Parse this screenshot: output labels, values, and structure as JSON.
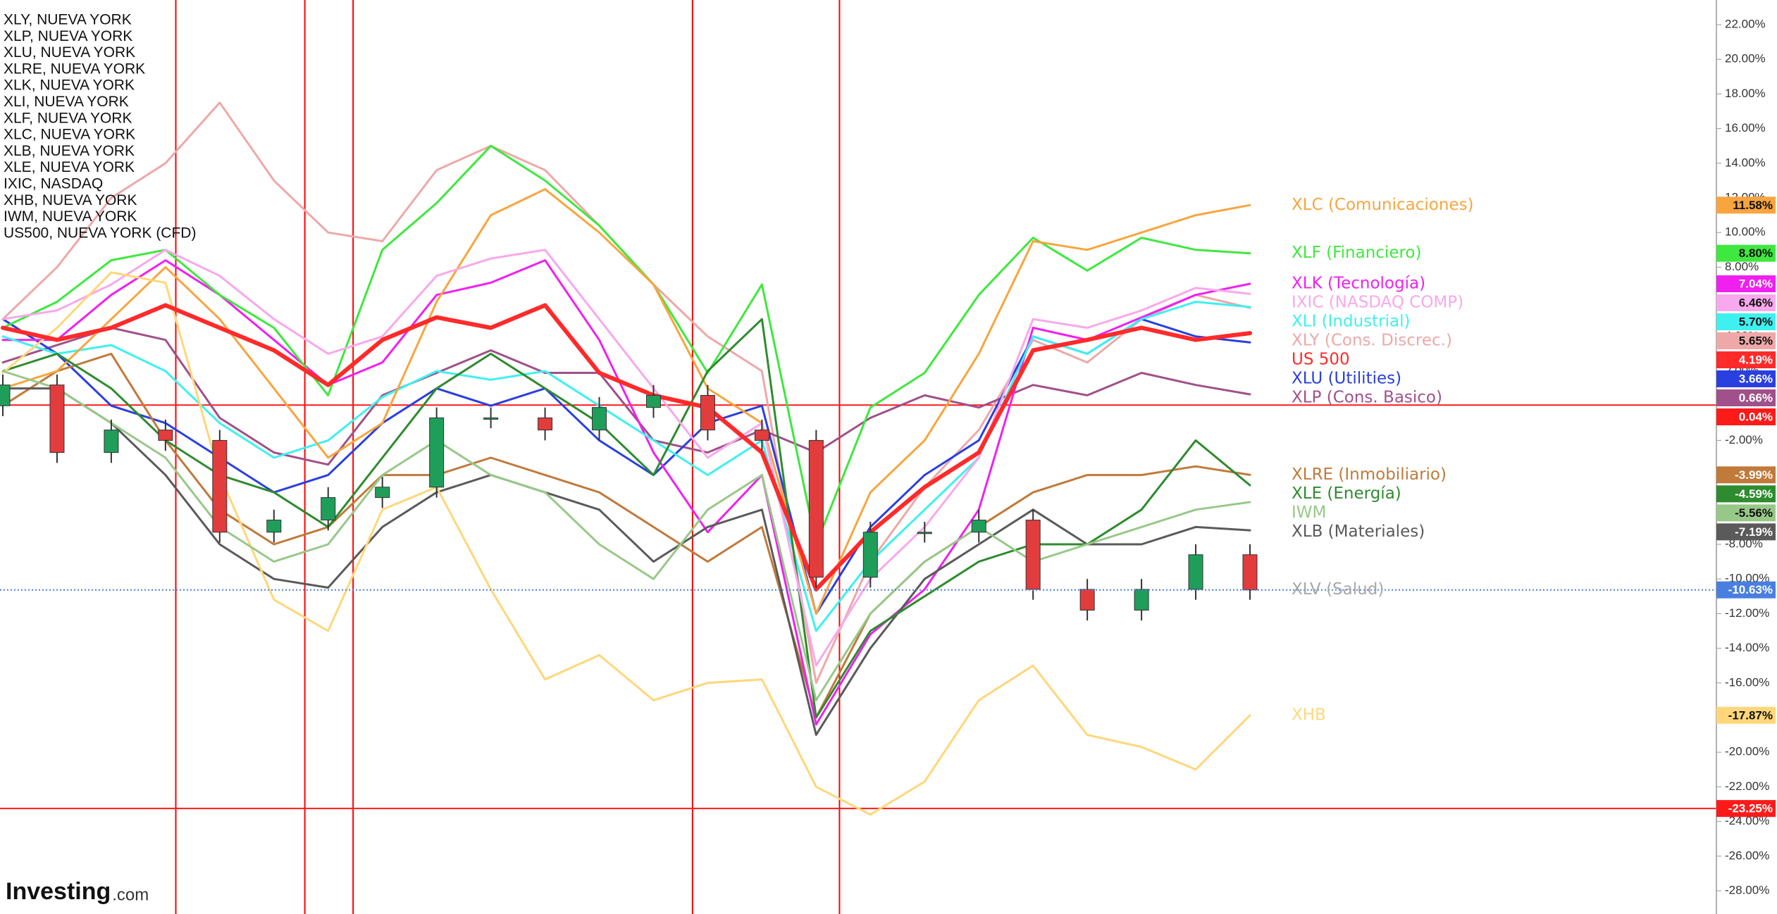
{
  "chart_data": {
    "type": "line",
    "xlim": [
      0,
      23
    ],
    "ylim": [
      -28,
      22
    ],
    "yticks": [
      {
        "value": 22,
        "label": "22.00%"
      },
      {
        "value": 20,
        "label": "20.00%"
      },
      {
        "value": 18,
        "label": "18.00%"
      },
      {
        "value": 16,
        "label": "16.00%"
      },
      {
        "value": 14,
        "label": "14.00%"
      },
      {
        "value": 12,
        "label": "12.00%"
      },
      {
        "value": 10,
        "label": "10.00%"
      },
      {
        "value": 8,
        "label": "8.00%"
      },
      {
        "value": 6,
        "label": "6.00%"
      },
      {
        "value": 4,
        "label": "4.00%"
      },
      {
        "value": 2,
        "label": "2.00%"
      },
      {
        "value": -2,
        "label": "-2.00%"
      },
      {
        "value": -4,
        "label": "-4.00%"
      },
      {
        "value": -6,
        "label": "-6.00%"
      },
      {
        "value": -8,
        "label": "-8.00%"
      },
      {
        "value": -10,
        "label": "-10.00%"
      },
      {
        "value": -12,
        "label": "-12.00%"
      },
      {
        "value": -14,
        "label": "-14.00%"
      },
      {
        "value": -16,
        "label": "-16.00%"
      },
      {
        "value": -18,
        "label": "-18.00%"
      },
      {
        "value": -20,
        "label": "-20.00%"
      },
      {
        "value": -22,
        "label": "-22.00%"
      },
      {
        "value": -24,
        "label": "-24.00%"
      },
      {
        "value": -26,
        "label": "-26.00%"
      },
      {
        "value": -28,
        "label": "-28.00%"
      }
    ],
    "vertical_lines": [
      3.19,
      5.57,
      6.46,
      12.72,
      15.43
    ],
    "vertical_line_color": "#ff0000",
    "hlines": [
      {
        "value": 0.04,
        "label": "0.04%",
        "color": "#ff1a1a"
      },
      {
        "value": -23.25,
        "label": "-23.25%",
        "color": "#ff1a1a"
      }
    ],
    "series": [
      {
        "name": "XLY, NUEVA YORK",
        "label": "XLY (Cons. Discrec.)",
        "end_label": "5.65%",
        "color": "#eea8a8",
        "values": [
          5,
          8,
          12,
          14,
          17.5,
          13,
          10,
          9.5,
          13.6,
          15,
          13.6,
          10.4,
          7,
          4,
          2,
          -16,
          -9,
          -4.7,
          -1.4,
          3.8,
          2.5,
          5,
          6.4,
          5.65
        ]
      },
      {
        "name": "XLP, NUEVA YORK",
        "label": "XLP (Cons. Basico)",
        "end_label": "0.66%",
        "color": "#a0508a",
        "values": [
          2.5,
          3.5,
          4.5,
          3.8,
          -0.7,
          -2.7,
          -3.4,
          0.6,
          1.9,
          3.2,
          1.9,
          1.9,
          -2,
          -2.7,
          -1.4,
          -2.7,
          -0.7,
          0.6,
          -0.1,
          1.2,
          0.6,
          1.9,
          1.2,
          0.66
        ]
      },
      {
        "name": "XLU, NUEVA YORK",
        "label": "XLU (Utilities)",
        "end_label": "3.66%",
        "color": "#2a3fe0",
        "values": [
          5,
          3,
          0,
          -1,
          -3,
          -5,
          -4,
          -1,
          1,
          0,
          1,
          -2,
          -4,
          -1,
          0,
          -12,
          -7,
          -4,
          -2,
          4,
          3,
          5,
          4,
          3.66
        ]
      },
      {
        "name": "XLRE, NUEVA YORK",
        "label": "XLRE (Inmobiliario)",
        "end_label": "-3.99%",
        "color": "#c07a3a",
        "values": [
          0,
          2,
          3,
          -2,
          -6,
          -8,
          -7,
          -4,
          -4,
          -3,
          -4,
          -5,
          -7,
          -9,
          -7,
          -18,
          -12,
          -9,
          -7,
          -5,
          -4,
          -4,
          -3.5,
          -3.99
        ]
      },
      {
        "name": "XLK, NUEVA YORK",
        "label": "XLK (Tecnología)",
        "end_label": "7.04%",
        "color": "#f020f0",
        "values": [
          3.8,
          3.8,
          6.4,
          8.4,
          6.4,
          3.8,
          1.2,
          2.5,
          6.4,
          7.1,
          8.4,
          3.8,
          -2.7,
          -7.3,
          -4,
          -18.4,
          -13.2,
          -10.6,
          -6,
          4.5,
          3.8,
          5.1,
          6.4,
          7.04
        ]
      },
      {
        "name": "XLI, NUEVA YORK",
        "label": "XLI (Industrial)",
        "end_label": "5.70%",
        "color": "#3ff0f0",
        "values": [
          4,
          3,
          3.5,
          2,
          -1,
          -3,
          -2,
          0.5,
          2,
          1.5,
          2,
          0,
          -2,
          -4,
          -2,
          -13,
          -9,
          -6,
          -3,
          4,
          3,
          5,
          6,
          5.7
        ]
      },
      {
        "name": "XLF, NUEVA YORK",
        "label": "XLF (Financiero)",
        "end_label": "8.80%",
        "color": "#3ee83e",
        "values": [
          4.5,
          6,
          8.4,
          9,
          6.4,
          4.5,
          0.6,
          9,
          11.7,
          15,
          13,
          10.4,
          7,
          1.9,
          7,
          -8,
          -0.1,
          1.9,
          6.4,
          9.7,
          7.8,
          9.7,
          9,
          8.8
        ]
      },
      {
        "name": "XLC, NUEVA YORK",
        "label": "XLC (Comunicaciones)",
        "end_label": "11.58%",
        "color": "#f8a53e",
        "values": [
          1,
          2,
          5,
          8,
          5,
          1,
          -3,
          -1,
          6,
          11,
          12.5,
          10,
          7,
          1,
          -1,
          -12,
          -5,
          -2,
          3,
          9.5,
          9,
          10,
          11,
          11.58
        ]
      },
      {
        "name": "XLB, NUEVA YORK",
        "label": "XLB (Materiales)",
        "end_label": "-7.19%",
        "color": "#5a5a5a",
        "values": [
          1,
          1,
          -1,
          -4,
          -8,
          -10,
          -10.5,
          -7,
          -5,
          -4,
          -5,
          -6,
          -9,
          -7,
          -6,
          -19,
          -14,
          -10,
          -8,
          -6,
          -8,
          -8,
          -7,
          -7.19
        ]
      },
      {
        "name": "XLE, NUEVA YORK",
        "label": "XLE (Energía)",
        "end_label": "-4.59%",
        "color": "#2e8b2e",
        "values": [
          2,
          3,
          1,
          -2,
          -4,
          -5,
          -7,
          -3,
          1,
          3,
          1,
          -1,
          -4,
          2,
          5,
          -18,
          -13,
          -11,
          -9,
          -8,
          -8,
          -6,
          -2,
          -4.59
        ]
      },
      {
        "name": "IXIC, NASDAQ",
        "label": "IXIC (NASDAQ COMP)",
        "end_label": "6.46%",
        "color": "#f8a8ec",
        "values": [
          5,
          5.5,
          7,
          9,
          7.5,
          5,
          3,
          4,
          7.5,
          8.5,
          9,
          5,
          1,
          -3,
          -1,
          -15,
          -10,
          -7,
          -3,
          5,
          4.5,
          5.5,
          6.8,
          6.46
        ]
      },
      {
        "name": "XHB, NUEVA YORK",
        "label": "XHB",
        "end_label": "-17.87%",
        "color": "#ffd77a",
        "values": [
          1.9,
          4.5,
          7.7,
          7.1,
          -4,
          -11.2,
          -13,
          -6,
          -4.7,
          -10.6,
          -15.8,
          -14.4,
          -17,
          -16,
          -15.8,
          -22,
          -23.6,
          -21.7,
          -17,
          -15,
          -19,
          -19.7,
          -21,
          -17.87
        ]
      },
      {
        "name": "IWM, NUEVA YORK",
        "label": "IWM",
        "end_label": "-5.56%",
        "color": "#98c888",
        "values": [
          2,
          1,
          -1,
          -3,
          -7,
          -9,
          -8,
          -4,
          -2,
          -4,
          -5,
          -8,
          -10,
          -6,
          -4,
          -17,
          -12,
          -9,
          -7,
          -9,
          -8,
          -7,
          -6,
          -5.56
        ]
      },
      {
        "name": "US500, NUEVA YORK (CFD)",
        "label": "US 500",
        "end_label": "4.19%",
        "color": "#ff2a2a",
        "thick": true,
        "values": [
          4.5,
          3.8,
          4.5,
          5.8,
          4.5,
          3.2,
          1.2,
          3.8,
          5.1,
          4.5,
          5.8,
          1.9,
          0.6,
          -0.1,
          -2.7,
          -10.6,
          -7.3,
          -4.7,
          -2.7,
          3.2,
          3.8,
          4.5,
          3.8,
          4.19
        ]
      }
    ],
    "candles": {
      "label": "XLV (Salud)",
      "end_label": "-10.63%",
      "label_color": "#a8a8a8",
      "badge_color": "#4a7fe0",
      "color_up": "#1f9e5a",
      "color_down": "#e23c3c",
      "open": [
        0,
        1.2,
        -2.7,
        -1.4,
        -2,
        -7.3,
        -6.6,
        -5.3,
        -4.7,
        -0.7,
        -0.7,
        -1.4,
        -0.1,
        0.6,
        -1.4,
        -2,
        -9.9,
        -7.3,
        -7.3,
        -6.6,
        -10.6,
        -11.8,
        -10.6,
        -8.6
      ],
      "high": [
        1.8,
        1.8,
        -0.8,
        -0.8,
        -1.4,
        -6,
        -4.7,
        -4.1,
        -0.1,
        -0.1,
        -0.1,
        0.5,
        1.2,
        1.2,
        -0.8,
        -1.4,
        -6.7,
        -6.7,
        -6,
        -6,
        -10,
        -10,
        -8,
        -8
      ],
      "low": [
        -0.6,
        -3.3,
        -3.3,
        -2.6,
        -7.9,
        -7.9,
        -7.2,
        -5.9,
        -5.3,
        -1.3,
        -2,
        -2,
        -0.7,
        -2,
        -2.6,
        -10.5,
        -10.5,
        -7.9,
        -7.9,
        -11.2,
        -12.4,
        -12.4,
        -11.2,
        -11.2
      ],
      "close": [
        1.2,
        -2.7,
        -1.4,
        -2,
        -7.3,
        -6.6,
        -5.3,
        -4.7,
        -0.7,
        -0.7,
        -1.4,
        -0.1,
        0.6,
        -1.4,
        -2,
        -9.9,
        -7.3,
        -7.3,
        -6.6,
        -10.6,
        -11.8,
        -10.6,
        -8.6,
        -10.63
      ]
    },
    "logo": "Investing",
    "logo_suffix": ".com"
  }
}
